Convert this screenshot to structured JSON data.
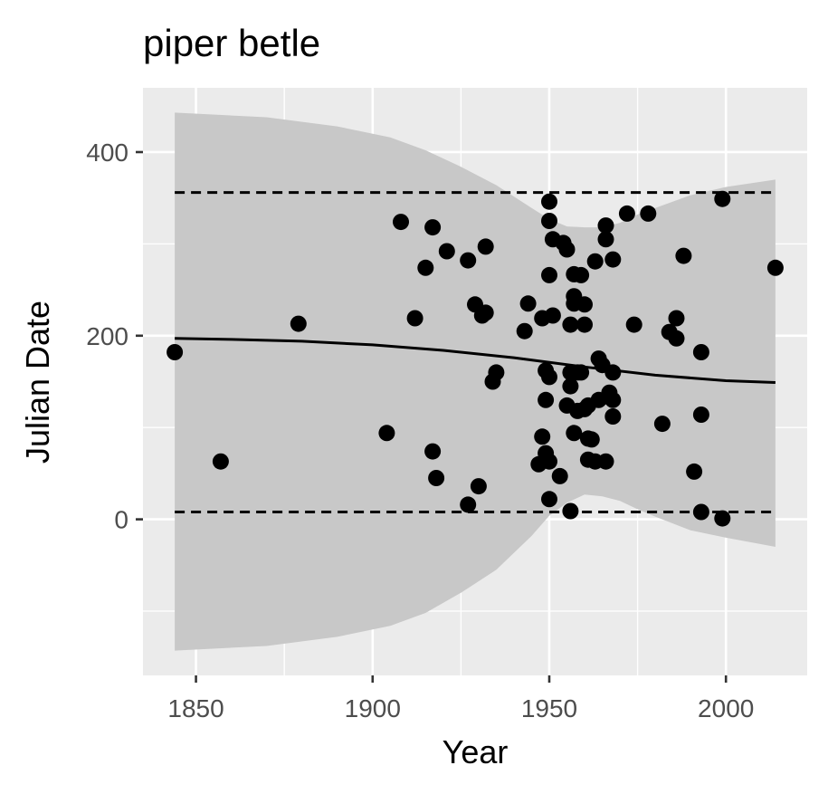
{
  "chart_data": {
    "type": "scatter",
    "title": "piper betle",
    "xlabel": "Year",
    "ylabel": "Julian Date",
    "xlim": [
      1835,
      2023
    ],
    "ylim": [
      -170,
      470
    ],
    "x_ticks": [
      1850,
      1900,
      1950,
      2000
    ],
    "x_tick_labels": [
      "1850",
      "1900",
      "1950",
      "2000"
    ],
    "y_ticks": [
      0,
      200,
      400
    ],
    "y_tick_labels": [
      "0",
      "200",
      "400"
    ],
    "grid": true,
    "legend": "none",
    "colors": {
      "panel": "#ebebeb",
      "grid": "#ffffff",
      "ribbon": "#c8c8c8",
      "points": "#000000",
      "trend": "#000000",
      "bounds": "#000000"
    },
    "points": [
      [
        1844,
        182
      ],
      [
        1857,
        63
      ],
      [
        1879,
        213
      ],
      [
        1904,
        94
      ],
      [
        1908,
        324
      ],
      [
        1912,
        219
      ],
      [
        1915,
        274
      ],
      [
        1917,
        318
      ],
      [
        1917,
        74
      ],
      [
        1918,
        45
      ],
      [
        1921,
        292
      ],
      [
        1927,
        282
      ],
      [
        1927,
        16
      ],
      [
        1929,
        234
      ],
      [
        1930,
        36
      ],
      [
        1931,
        222
      ],
      [
        1932,
        297
      ],
      [
        1932,
        225
      ],
      [
        1934,
        150
      ],
      [
        1935,
        160
      ],
      [
        1943,
        205
      ],
      [
        1944,
        235
      ],
      [
        1947,
        60
      ],
      [
        1948,
        219
      ],
      [
        1948,
        90
      ],
      [
        1949,
        162
      ],
      [
        1949,
        130
      ],
      [
        1949,
        72
      ],
      [
        1950,
        346
      ],
      [
        1950,
        325
      ],
      [
        1950,
        266
      ],
      [
        1950,
        155
      ],
      [
        1950,
        63
      ],
      [
        1950,
        22
      ],
      [
        1951,
        305
      ],
      [
        1951,
        222
      ],
      [
        1953,
        47
      ],
      [
        1954,
        301
      ],
      [
        1955,
        294
      ],
      [
        1955,
        124
      ],
      [
        1956,
        212
      ],
      [
        1956,
        160
      ],
      [
        1956,
        145
      ],
      [
        1956,
        9
      ],
      [
        1957,
        267
      ],
      [
        1957,
        243
      ],
      [
        1957,
        235
      ],
      [
        1957,
        94
      ],
      [
        1958,
        118
      ],
      [
        1958,
        160
      ],
      [
        1959,
        266
      ],
      [
        1959,
        160
      ],
      [
        1960,
        234
      ],
      [
        1960,
        212
      ],
      [
        1960,
        120
      ],
      [
        1961,
        124
      ],
      [
        1961,
        88
      ],
      [
        1961,
        65
      ],
      [
        1962,
        87
      ],
      [
        1963,
        281
      ],
      [
        1963,
        63
      ],
      [
        1964,
        175
      ],
      [
        1964,
        130
      ],
      [
        1965,
        168
      ],
      [
        1966,
        320
      ],
      [
        1966,
        305
      ],
      [
        1966,
        63
      ],
      [
        1967,
        138
      ],
      [
        1967,
        133
      ],
      [
        1968,
        283
      ],
      [
        1968,
        160
      ],
      [
        1968,
        130
      ],
      [
        1968,
        112
      ],
      [
        1972,
        333
      ],
      [
        1974,
        212
      ],
      [
        1978,
        333
      ],
      [
        1982,
        104
      ],
      [
        1984,
        204
      ],
      [
        1986,
        219
      ],
      [
        1986,
        197
      ],
      [
        1988,
        287
      ],
      [
        1991,
        52
      ],
      [
        1993,
        182
      ],
      [
        1993,
        114
      ],
      [
        1993,
        8
      ],
      [
        1999,
        349
      ],
      [
        1999,
        1
      ],
      [
        2014,
        274
      ]
    ],
    "trend": {
      "x": [
        1844,
        1860,
        1880,
        1900,
        1920,
        1940,
        1960,
        1980,
        2000,
        2014
      ],
      "y": [
        197,
        196,
        194,
        190,
        184,
        176,
        166,
        157,
        151,
        149
      ]
    },
    "ribbon": {
      "x": [
        1844,
        1870,
        1890,
        1905,
        1915,
        1925,
        1935,
        1945,
        1950,
        1955,
        1960,
        1965,
        1970,
        1975,
        1980,
        1990,
        2000,
        2014
      ],
      "upper": [
        443,
        438,
        428,
        416,
        402,
        384,
        364,
        339,
        327,
        319,
        318,
        318,
        323,
        332,
        339,
        353,
        362,
        370
      ],
      "lower": [
        -143,
        -138,
        -128,
        -116,
        -102,
        -80,
        -55,
        -18,
        4,
        18,
        27,
        25,
        20,
        11,
        3,
        -12,
        -20,
        -30
      ]
    },
    "upper_bound": {
      "x": [
        1844,
        2014
      ],
      "y": [
        356,
        356
      ]
    },
    "lower_bound": {
      "x": [
        1844,
        2014
      ],
      "y": [
        8,
        8
      ]
    }
  }
}
